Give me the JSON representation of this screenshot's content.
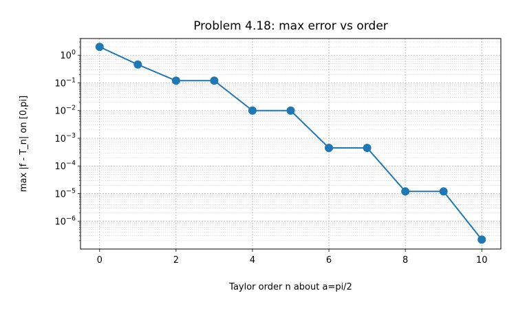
{
  "chart_data": {
    "type": "line",
    "title": "Problem 4.18: max error vs order",
    "xlabel": "Taylor order n about a=pi/2",
    "ylabel": "max |f - T_n| on [0,pi]",
    "y_scale": "log",
    "grid": true,
    "grid_minor": true,
    "xlim": [
      -0.5,
      10.5
    ],
    "ylim": [
      1e-07,
      4.0
    ],
    "x_ticks": [
      0,
      2,
      4,
      6,
      8,
      10
    ],
    "y_ticks": [
      {
        "value": 1,
        "base": "10",
        "exp": "0"
      },
      {
        "value": 0.1,
        "base": "10",
        "exp": "−1"
      },
      {
        "value": 0.01,
        "base": "10",
        "exp": "−2"
      },
      {
        "value": 0.001,
        "base": "10",
        "exp": "−3"
      },
      {
        "value": 0.0001,
        "base": "10",
        "exp": "−4"
      },
      {
        "value": 1e-05,
        "base": "10",
        "exp": "−5"
      },
      {
        "value": 1e-06,
        "base": "10",
        "exp": "−6"
      }
    ],
    "series": [
      {
        "color": "#1f77b4",
        "marker": "circle",
        "x": [
          0,
          1,
          2,
          3,
          4,
          5,
          6,
          7,
          8,
          9,
          10
        ],
        "y": [
          2.0,
          0.46,
          0.12,
          0.12,
          0.01,
          0.01,
          0.00045,
          0.00045,
          1.2e-05,
          1.2e-05,
          2.2e-07
        ]
      }
    ]
  }
}
